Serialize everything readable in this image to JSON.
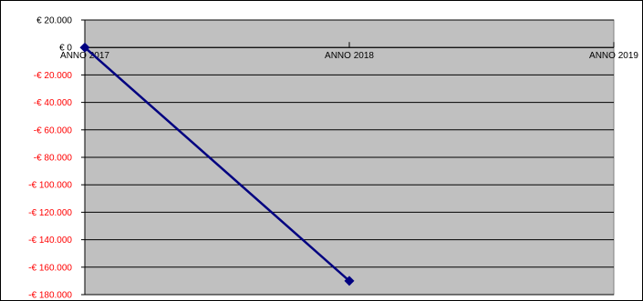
{
  "chart_data": {
    "type": "line",
    "title": "",
    "xlabel": "",
    "ylabel": "",
    "categories": [
      "ANNO 2017",
      "ANNO 2018",
      "ANNO 2019"
    ],
    "series": [
      {
        "values": [
          0,
          -170000,
          null
        ]
      }
    ],
    "ylim": [
      -180000,
      20000
    ],
    "y_ticks": [
      20000,
      0,
      -20000,
      -40000,
      -60000,
      -80000,
      -100000,
      -120000,
      -140000,
      -160000,
      -180000
    ],
    "y_tick_labels": [
      "€ 20.000",
      "€ 0",
      "-€ 20.000",
      "-€ 40.000",
      "-€ 60.000",
      "-€ 80.000",
      "-€ 100.000",
      "-€ 120.000",
      "-€ 140.000",
      "-€ 160.000",
      "-€ 180.000"
    ],
    "grid": true,
    "legend": "none",
    "colors": {
      "plot_background": "#c0c0c0",
      "line": "#000080",
      "gridline": "#000000",
      "negative_label": "#ff0000",
      "positive_label": "#000000"
    }
  }
}
